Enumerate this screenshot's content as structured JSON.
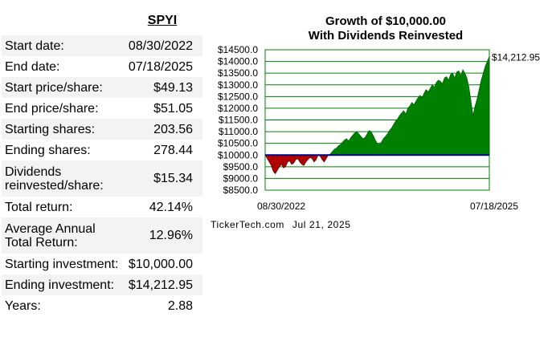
{
  "ticker": "SPYI",
  "stats": [
    {
      "label": "Start date:",
      "value": "08/30/2022"
    },
    {
      "label": "End date:",
      "value": "07/18/2025"
    },
    {
      "label": "Start price/share:",
      "value": "$49.13"
    },
    {
      "label": "End price/share:",
      "value": "$51.05"
    },
    {
      "label": "Starting shares:",
      "value": "203.56"
    },
    {
      "label": "Ending shares:",
      "value": "278.44"
    },
    {
      "label": "Dividends reinvested/share:",
      "value": "$15.34"
    },
    {
      "label": "Total return:",
      "value": "42.14%"
    },
    {
      "label": "Average Annual Total Return:",
      "value": "12.96%"
    },
    {
      "label": "Starting investment:",
      "value": "$10,000.00"
    },
    {
      "label": "Ending investment:",
      "value": "$14,212.95"
    },
    {
      "label": "Years:",
      "value": "2.88"
    }
  ],
  "credit": {
    "site": "TickerTech.com",
    "date": "Jul 21, 2025"
  },
  "chart_data": {
    "type": "area",
    "title": "Growth of $10,000.00",
    "subtitle": "With Dividends Reinvested",
    "xlabel": "",
    "ylabel": "",
    "x_start_label": "08/30/2022",
    "x_end_label": "07/18/2025",
    "end_value_label": "$14,212.95",
    "baseline": 10000,
    "ylim": [
      8500,
      14500
    ],
    "yticks": [
      "$14500.0",
      "$14000.0",
      "$13500.0",
      "$13000.0",
      "$12500.0",
      "$12000.0",
      "$11500.0",
      "$11000.0",
      "$10500.0",
      "$10000.0",
      "$9500.0",
      "$9000.0",
      "$8500.0"
    ],
    "colors": {
      "above": "#008000",
      "below": "#b00000",
      "baseline": "#000080",
      "grid": "#008000"
    },
    "series": [
      {
        "values": [
          10000,
          9850,
          9700,
          9550,
          9300,
          9200,
          9350,
          9500,
          9600,
          9450,
          9500,
          9700,
          9750,
          9600,
          9650,
          9800,
          9850,
          9700,
          9600,
          9550,
          9700,
          9800,
          9900,
          9850,
          9700,
          9800,
          10000,
          9950,
          9800,
          9700,
          9850,
          10000,
          10050,
          10150,
          10250,
          10300,
          10400,
          10450,
          10550,
          10650,
          10700,
          10600,
          10750,
          10850,
          10950,
          11000,
          10900,
          10800,
          10700,
          10750,
          10900,
          11050,
          11000,
          10850,
          10650,
          10500,
          10450,
          10550,
          10700,
          10800,
          10900,
          11050,
          11150,
          11300,
          11450,
          11550,
          11700,
          11800,
          11900,
          11750,
          12000,
          12100,
          12250,
          12150,
          12300,
          12450,
          12550,
          12450,
          12650,
          12800,
          12700,
          12850,
          13000,
          12900,
          13100,
          13200,
          13150,
          13050,
          13300,
          13350,
          13200,
          13450,
          13500,
          13300,
          13550,
          13600,
          13400,
          13650,
          13500,
          13300,
          12900,
          12300,
          11700,
          12100,
          12400,
          12800,
          13200,
          13500,
          13800,
          14000,
          14212.95
        ]
      }
    ]
  }
}
